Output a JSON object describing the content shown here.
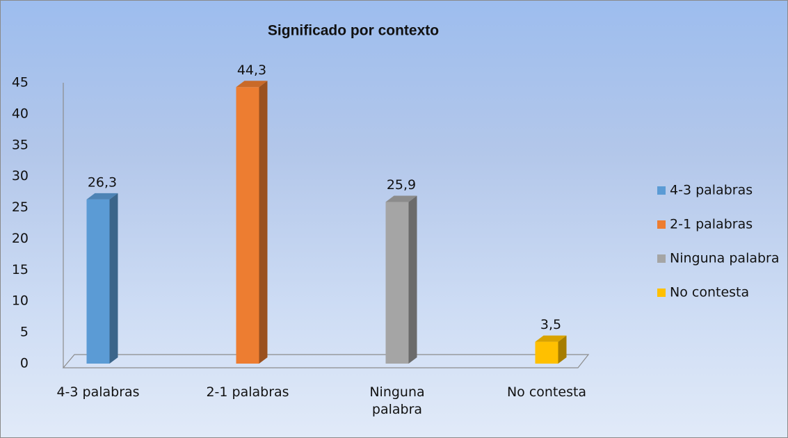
{
  "chart_data": {
    "type": "bar3d",
    "title": "Significado por contexto",
    "categories": [
      "4-3 palabras",
      "2-1 palabras",
      "Ninguna palabra",
      "No contesta"
    ],
    "values": [
      26.3,
      44.3,
      25.9,
      3.5
    ],
    "value_labels": [
      "26,3",
      "44,3",
      "25,9",
      "3,5"
    ],
    "colors": [
      "#5b9bd5",
      "#ed7d31",
      "#a5a5a5",
      "#ffc000"
    ],
    "ylim": [
      0,
      45
    ],
    "yticks": [
      0,
      5,
      10,
      15,
      20,
      25,
      30,
      35,
      40,
      45
    ],
    "grid": false,
    "legend": "right"
  }
}
